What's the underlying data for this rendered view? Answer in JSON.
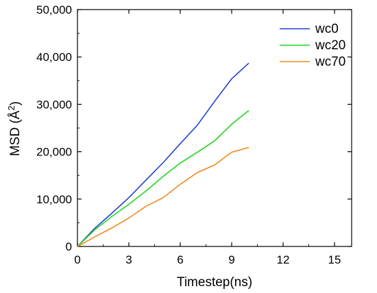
{
  "chart_data": {
    "type": "line",
    "xlabel": "Timestep(ns)",
    "ylabel": "MSD (Å²)",
    "ylabel_parts": {
      "prefix": "MSD (Å",
      "superscript": "2",
      "suffix": ")"
    },
    "xlim": [
      0,
      16
    ],
    "ylim": [
      0,
      50000
    ],
    "x_ticks": [
      0,
      3,
      6,
      9,
      12,
      15
    ],
    "x_tick_labels": [
      "0",
      "3",
      "6",
      "9",
      "12",
      "15"
    ],
    "y_ticks": [
      0,
      10000,
      20000,
      30000,
      40000,
      50000
    ],
    "y_tick_labels": [
      "0",
      "10,000",
      "20,000",
      "30,000",
      "40,000",
      "50,000"
    ],
    "grid": false,
    "legend_position": "top-right",
    "series": [
      {
        "name": "wc0",
        "color": "#1f3fcf",
        "x": [
          0,
          1,
          2,
          3,
          4,
          5,
          6,
          7,
          8,
          9,
          10
        ],
        "y": [
          0,
          3800,
          7000,
          10300,
          14000,
          17700,
          21700,
          25600,
          30600,
          35400,
          38700
        ]
      },
      {
        "name": "wc20",
        "color": "#22d322",
        "x": [
          0,
          1,
          2,
          3,
          4,
          5,
          6,
          7,
          8,
          9,
          10
        ],
        "y": [
          0,
          3500,
          6300,
          8900,
          11700,
          14800,
          17600,
          19900,
          22300,
          25800,
          28700
        ]
      },
      {
        "name": "wc70",
        "color": "#f08a1c",
        "x": [
          0,
          1,
          2,
          3,
          4,
          5,
          6,
          7,
          8,
          9,
          10
        ],
        "y": [
          0,
          2000,
          3900,
          6000,
          8500,
          10300,
          13100,
          15600,
          17200,
          19900,
          20900
        ]
      }
    ]
  }
}
